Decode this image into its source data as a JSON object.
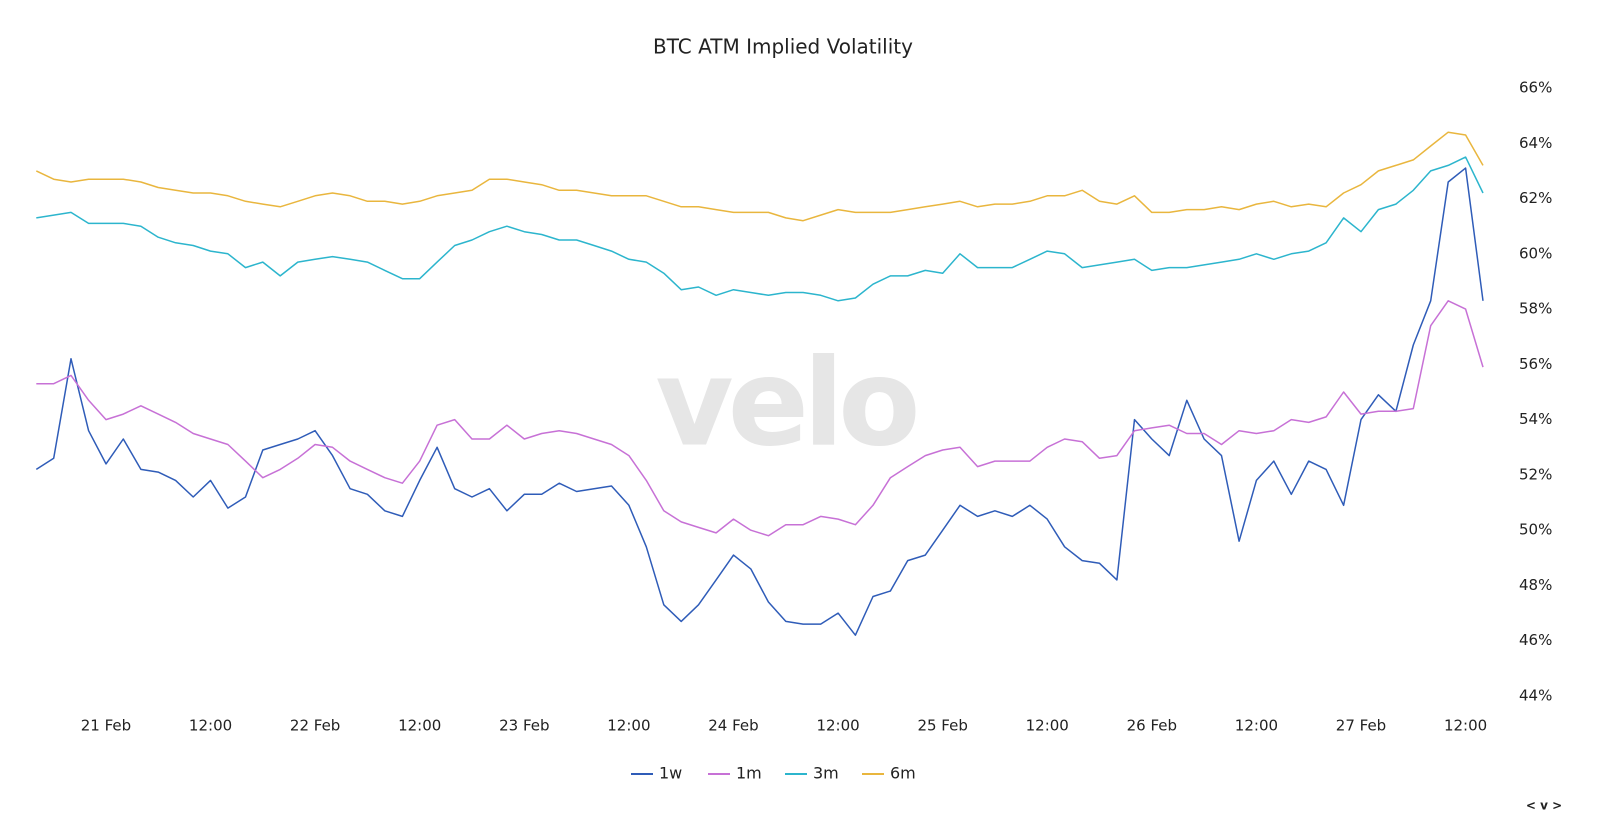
{
  "chart_data": {
    "type": "line",
    "title": "BTC ATM Implied Volatility",
    "watermark": "velo",
    "corner_control": "< v >",
    "x": [
      20.667,
      20.75,
      20.833,
      20.917,
      21,
      21.083,
      21.167,
      21.25,
      21.333,
      21.417,
      21.5,
      21.583,
      21.667,
      21.75,
      21.833,
      21.917,
      22,
      22.083,
      22.167,
      22.25,
      22.333,
      22.417,
      22.5,
      22.583,
      22.667,
      22.75,
      22.833,
      22.917,
      23,
      23.083,
      23.167,
      23.25,
      23.333,
      23.417,
      23.5,
      23.583,
      23.667,
      23.75,
      23.833,
      23.917,
      24,
      24.083,
      24.167,
      24.25,
      24.333,
      24.417,
      24.5,
      24.583,
      24.667,
      24.75,
      24.833,
      24.917,
      25,
      25.083,
      25.167,
      25.25,
      25.333,
      25.417,
      25.5,
      25.583,
      25.667,
      25.75,
      25.833,
      25.917,
      26,
      26.083,
      26.167,
      26.25,
      26.333,
      26.417,
      26.5,
      26.583,
      26.667,
      26.75,
      26.833,
      26.917,
      27,
      27.083,
      27.167,
      27.25,
      27.333,
      27.417,
      27.5,
      27.583
    ],
    "series": [
      {
        "name": "1w",
        "color": "#2f5cb8",
        "values": [
          52.2,
          52.6,
          56.2,
          53.6,
          52.4,
          53.3,
          52.2,
          52.1,
          51.8,
          51.2,
          51.8,
          50.8,
          51.2,
          52.9,
          53.1,
          53.3,
          53.6,
          52.7,
          51.5,
          51.3,
          50.7,
          50.5,
          51.8,
          53.0,
          51.5,
          51.2,
          51.5,
          50.7,
          51.3,
          51.3,
          51.7,
          51.4,
          51.5,
          51.6,
          50.9,
          49.4,
          47.3,
          46.7,
          47.3,
          48.2,
          49.1,
          48.6,
          47.4,
          46.7,
          46.6,
          46.6,
          47.0,
          46.2,
          47.6,
          47.8,
          48.9,
          49.1,
          50.0,
          50.9,
          50.5,
          50.7,
          50.5,
          50.9,
          50.4,
          49.4,
          48.9,
          48.8,
          48.2,
          54.0,
          53.3,
          52.7,
          54.7,
          53.3,
          52.7,
          49.6,
          51.8,
          52.5,
          51.3,
          52.5,
          52.2,
          50.9,
          54.0,
          54.9,
          54.3,
          56.7,
          58.3,
          62.6,
          63.1,
          58.3
        ]
      },
      {
        "name": "1m",
        "color": "#c771d6",
        "values": [
          55.3,
          55.3,
          55.6,
          54.7,
          54.0,
          54.2,
          54.5,
          54.2,
          53.9,
          53.5,
          53.3,
          53.1,
          52.5,
          51.9,
          52.2,
          52.6,
          53.1,
          53.0,
          52.5,
          52.2,
          51.9,
          51.7,
          52.5,
          53.8,
          54.0,
          53.3,
          53.3,
          53.8,
          53.3,
          53.5,
          53.6,
          53.5,
          53.3,
          53.1,
          52.7,
          51.8,
          50.7,
          50.3,
          50.1,
          49.9,
          50.4,
          50.0,
          49.8,
          50.2,
          50.2,
          50.5,
          50.4,
          50.2,
          50.9,
          51.9,
          52.3,
          52.7,
          52.9,
          53.0,
          52.3,
          52.5,
          52.5,
          52.5,
          53.0,
          53.3,
          53.2,
          52.6,
          52.7,
          53.6,
          53.7,
          53.8,
          53.5,
          53.5,
          53.1,
          53.6,
          53.5,
          53.6,
          54.0,
          53.9,
          54.1,
          55.0,
          54.2,
          54.3,
          54.3,
          54.4,
          57.4,
          58.3,
          58.0,
          55.9
        ]
      },
      {
        "name": "3m",
        "color": "#2cb5cd",
        "values": [
          61.3,
          61.4,
          61.5,
          61.1,
          61.1,
          61.1,
          61.0,
          60.6,
          60.4,
          60.3,
          60.1,
          60.0,
          59.5,
          59.7,
          59.2,
          59.7,
          59.8,
          59.9,
          59.8,
          59.7,
          59.4,
          59.1,
          59.1,
          59.7,
          60.3,
          60.5,
          60.8,
          61.0,
          60.8,
          60.7,
          60.5,
          60.5,
          60.3,
          60.1,
          59.8,
          59.7,
          59.3,
          58.7,
          58.8,
          58.5,
          58.7,
          58.6,
          58.5,
          58.6,
          58.6,
          58.5,
          58.3,
          58.4,
          58.9,
          59.2,
          59.2,
          59.4,
          59.3,
          60.0,
          59.5,
          59.5,
          59.5,
          59.8,
          60.1,
          60.0,
          59.5,
          59.6,
          59.7,
          59.8,
          59.4,
          59.5,
          59.5,
          59.6,
          59.7,
          59.8,
          60.0,
          59.8,
          60.0,
          60.1,
          60.4,
          61.3,
          60.8,
          61.6,
          61.8,
          62.3,
          63.0,
          63.2,
          63.5,
          62.2
        ]
      },
      {
        "name": "6m",
        "color": "#e9b63e",
        "values": [
          63.0,
          62.7,
          62.6,
          62.7,
          62.7,
          62.7,
          62.6,
          62.4,
          62.3,
          62.2,
          62.2,
          62.1,
          61.9,
          61.8,
          61.7,
          61.9,
          62.1,
          62.2,
          62.1,
          61.9,
          61.9,
          61.8,
          61.9,
          62.1,
          62.2,
          62.3,
          62.7,
          62.7,
          62.6,
          62.5,
          62.3,
          62.3,
          62.2,
          62.1,
          62.1,
          62.1,
          61.9,
          61.7,
          61.7,
          61.6,
          61.5,
          61.5,
          61.5,
          61.3,
          61.2,
          61.4,
          61.6,
          61.5,
          61.5,
          61.5,
          61.6,
          61.7,
          61.8,
          61.9,
          61.7,
          61.8,
          61.8,
          61.9,
          62.1,
          62.1,
          62.3,
          61.9,
          61.8,
          62.1,
          61.5,
          61.5,
          61.6,
          61.6,
          61.7,
          61.6,
          61.8,
          61.9,
          61.7,
          61.8,
          61.7,
          62.2,
          62.5,
          63.0,
          63.2,
          63.4,
          63.9,
          64.4,
          64.3,
          63.2
        ]
      }
    ],
    "xlim": [
      20.656,
      27.588
    ],
    "xticks": [
      {
        "value": 21,
        "label": "21 Feb"
      },
      {
        "value": 21.5,
        "label": "12:00"
      },
      {
        "value": 22,
        "label": "22 Feb"
      },
      {
        "value": 22.5,
        "label": "12:00"
      },
      {
        "value": 23,
        "label": "23 Feb"
      },
      {
        "value": 23.5,
        "label": "12:00"
      },
      {
        "value": 24,
        "label": "24 Feb"
      },
      {
        "value": 24.5,
        "label": "12:00"
      },
      {
        "value": 25,
        "label": "25 Feb"
      },
      {
        "value": 25.5,
        "label": "12:00"
      },
      {
        "value": 26,
        "label": "26 Feb"
      },
      {
        "value": 26.5,
        "label": "12:00"
      },
      {
        "value": 27,
        "label": "27 Feb"
      },
      {
        "value": 27.5,
        "label": "12:00"
      }
    ],
    "ylim": [
      44,
      66
    ],
    "yticks": [
      {
        "value": 44,
        "label": "44%"
      },
      {
        "value": 46,
        "label": "46%"
      },
      {
        "value": 48,
        "label": "48%"
      },
      {
        "value": 50,
        "label": "50%"
      },
      {
        "value": 52,
        "label": "52%"
      },
      {
        "value": 54,
        "label": "54%"
      },
      {
        "value": 56,
        "label": "56%"
      },
      {
        "value": 58,
        "label": "58%"
      },
      {
        "value": 60,
        "label": "60%"
      },
      {
        "value": 62,
        "label": "62%"
      },
      {
        "value": 64,
        "label": "64%"
      },
      {
        "value": 66,
        "label": "66%"
      }
    ],
    "yaxis_side": "right",
    "grid": false,
    "legend": "bottom"
  }
}
